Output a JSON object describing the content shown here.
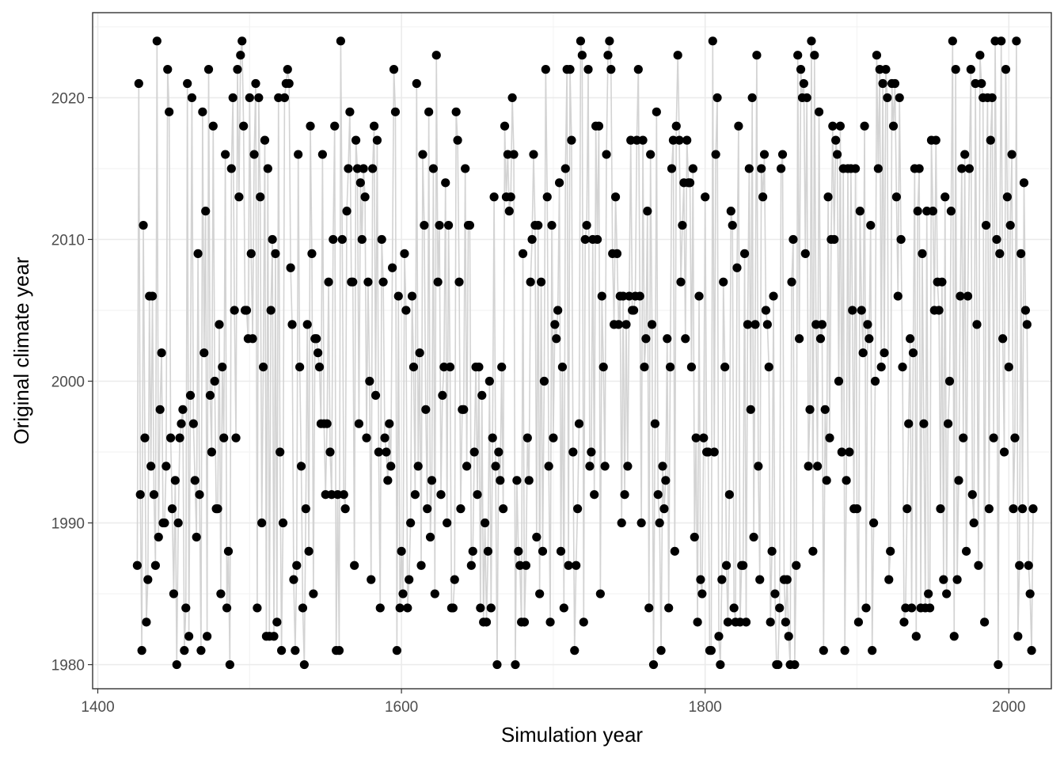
{
  "chart_data": {
    "type": "line",
    "xlabel": "Simulation year",
    "ylabel": "Original climate year",
    "xlim": [
      1400,
      2020
    ],
    "ylim": [
      1978.3,
      2026.0
    ],
    "x_ticks": [
      1400,
      1600,
      1800,
      2000
    ],
    "y_ticks": [
      1980,
      1990,
      2000,
      2010,
      2020
    ],
    "grid": true,
    "line_color": "#d3d3d3",
    "point_color": "#000000",
    "series": [
      {
        "x_start": 1426,
        "y": [
          1987,
          2021,
          1992,
          1981,
          2011,
          1996,
          1983,
          1986,
          2006,
          1994,
          2006,
          1992,
          1987,
          2024,
          1989,
          1998,
          2002,
          1990,
          1990,
          1994,
          2022,
          2019,
          1996,
          1991,
          1985,
          1993,
          1980,
          1990,
          1996,
          1997,
          1998,
          1981,
          1984,
          2021,
          1982,
          1999,
          2020,
          1997,
          1993,
          1989,
          2009,
          1992,
          1981,
          2019,
          2002,
          2012,
          1982,
          2022,
          1999,
          1995,
          2018,
          2000,
          1991,
          1991,
          2004,
          1985,
          2001,
          1996,
          2016,
          1984,
          1988,
          1980,
          2015,
          2020,
          2005,
          1996,
          2022,
          2013,
          2023,
          2024,
          2018,
          2005,
          2005,
          2003,
          2020,
          2009,
          2003,
          2016,
          2021,
          1984,
          2020,
          2013,
          1990,
          2001,
          2017,
          1982,
          2015,
          1982,
          2005,
          2010,
          1982,
          2009,
          1983,
          2020,
          1995,
          1981,
          1990,
          2020,
          2021,
          2022,
          2021,
          2008,
          2004,
          1986,
          1981,
          1987,
          2016,
          2001,
          1994,
          1984,
          1980,
          1991,
          2004,
          1988,
          2018,
          2009,
          1985,
          2003,
          2003,
          2002,
          2001,
          1997,
          2016,
          1997,
          1992,
          1997,
          2007,
          1995,
          1992,
          2010,
          2018,
          1981,
          1992,
          1981,
          2024,
          2010,
          1992,
          1991,
          2012,
          2015,
          2019,
          2007,
          2007,
          1987,
          2017,
          2015,
          1997,
          2014,
          2010,
          2015,
          2013,
          1996,
          2007,
          2000,
          1986,
          2015,
          2018,
          1999,
          2017,
          1995,
          1984,
          2010,
          2007,
          1996,
          1995,
          1993,
          1997,
          1994,
          2008,
          2022,
          2019,
          1981,
          2006,
          1984,
          1988,
          1985,
          2009,
          2005,
          1984,
          1986,
          1990,
          2006,
          2001,
          1992,
          2021,
          1994,
          2002,
          1987,
          2016,
          2011,
          1998,
          1991,
          2019,
          1989,
          1993,
          2015,
          1985,
          2023,
          2007,
          2011,
          1992,
          1999,
          2001,
          2014,
          1990,
          2011,
          2001,
          1984,
          1984,
          1986,
          2019,
          2017,
          2007,
          1991,
          1998,
          1998,
          2015,
          1994,
          2011,
          2011,
          1987,
          1988,
          1995,
          2001,
          1992,
          2001,
          1984,
          1999,
          1983,
          1990,
          1983,
          1988,
          2000,
          1984,
          1996,
          2013,
          1994,
          1980,
          1995,
          1993,
          2001,
          1991,
          2018,
          2013,
          2016,
          2012,
          2013,
          2020,
          2016,
          1980,
          1993,
          1988,
          1987,
          1983,
          2009,
          1983,
          1987,
          1996,
          1993,
          2007,
          2010,
          2016,
          2011,
          1989,
          2011,
          1985,
          2007,
          1988,
          2000,
          2022,
          2013,
          1994,
          1983,
          2011,
          1996,
          2004,
          2003,
          2005,
          2014,
          1988,
          2001,
          1984,
          2015,
          2022,
          1987,
          2022,
          2017,
          1995,
          1981,
          1987,
          1991,
          1997,
          2024,
          2023,
          1983,
          2010,
          2011,
          2022,
          1994,
          1995,
          2010,
          1992,
          2018,
          2010,
          2018,
          1985,
          2006,
          2001,
          1994,
          2016,
          2023,
          2024,
          2022,
          2009,
          2004,
          2013,
          2009,
          2004,
          2006,
          1990,
          2006,
          1992,
          2004,
          1994,
          2006,
          2017,
          2005,
          2005,
          2006,
          2017,
          2022,
          2006,
          1990,
          2017,
          2001,
          2003,
          2012,
          1984,
          2016,
          2004,
          1980,
          1997,
          2019,
          1992,
          1990,
          1981,
          1994,
          1991,
          1993,
          2003,
          1984,
          2001,
          2015,
          2017,
          1988,
          2018,
          2023,
          2017,
          2007,
          2011,
          2014,
          2003,
          2017,
          2014,
          2014,
          2001,
          2015,
          1989,
          1996,
          1983,
          2006,
          1986,
          1985,
          1996,
          2013,
          1995,
          1995,
          1981,
          1981,
          2024,
          1995,
          2016,
          2020,
          1982,
          1980,
          1986,
          2007,
          2001,
          1987,
          1983,
          1992,
          2012,
          2011,
          1984,
          1983,
          2008,
          2018,
          1983,
          1987,
          1987,
          2009,
          1983,
          2004,
          2015,
          1998,
          2020,
          1989,
          2004,
          2023,
          1994,
          1986,
          2015,
          2013,
          2016,
          2005,
          2004,
          2001,
          1983,
          1988,
          2006,
          1985,
          1980,
          1980,
          1984,
          2015,
          2016,
          1986,
          1983,
          1986,
          1982,
          1980,
          2007,
          2010,
          1980,
          1987,
          2023,
          2003,
          2022,
          2020,
          2021,
          2009,
          2020,
          1994,
          1998,
          2024,
          1988,
          2023,
          2004,
          1994,
          2019,
          2003,
          2004,
          1981,
          1998,
          1993,
          2013,
          1996,
          2010,
          2018,
          2010,
          2017,
          2016,
          2000,
          2018,
          1995,
          2015,
          1981,
          1993,
          2015,
          1995,
          2015,
          2005,
          1991,
          2015,
          1991,
          1983,
          2012,
          2005,
          2002,
          2018,
          1984,
          2004,
          2003,
          2011,
          1981,
          1990,
          2000,
          2023,
          2015,
          2022,
          2001,
          2021,
          2002,
          2022,
          2020,
          1986,
          1988,
          2021,
          2018,
          2021,
          2013,
          2006,
          2020,
          2010,
          2001,
          1983,
          1984,
          1991,
          1997,
          2003,
          1984,
          2002,
          2015,
          1982,
          2012,
          2015,
          1984,
          2009,
          1997,
          1984,
          2012,
          1985,
          1984,
          2017,
          2012,
          2005,
          2017,
          2007,
          2005,
          1991,
          2007,
          1986,
          2013,
          1985,
          1997,
          2000,
          2012,
          2024,
          1982,
          2022,
          1986,
          1993,
          2006,
          2015,
          1996,
          2016,
          1988,
          2006,
          2015,
          2022,
          1992,
          1990,
          2021,
          2004,
          1987,
          2023,
          2021,
          2020,
          1983,
          2011,
          2020,
          1991,
          2017,
          2020,
          1996,
          2024,
          2010,
          1980,
          2009,
          2024,
          2003,
          1995,
          2022,
          2013,
          2001,
          2011,
          2016,
          1991,
          1996,
          2024,
          1982,
          1987,
          2009,
          1991,
          2014,
          2005,
          2004,
          1987,
          1985,
          1981,
          1991
        ]
      }
    ]
  }
}
